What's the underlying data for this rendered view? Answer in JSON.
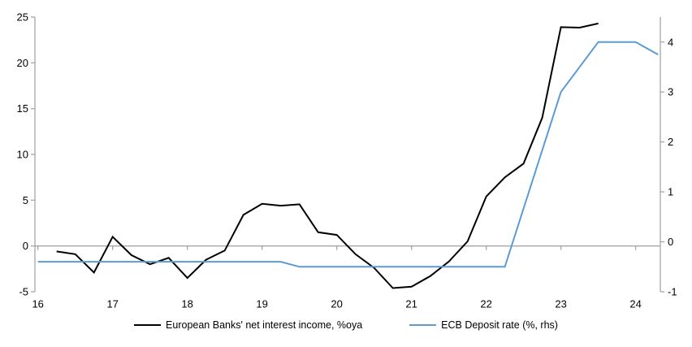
{
  "chart_data": {
    "type": "line",
    "title": "",
    "legend_position": "bottom",
    "grid": "off",
    "x_axis": {
      "min": 15.96,
      "max": 24.33,
      "ticks": [
        16,
        17,
        18,
        19,
        20,
        21,
        22,
        23,
        24
      ]
    },
    "left_axis": {
      "min": -5,
      "max": 25,
      "ticks": [
        25,
        20,
        15,
        10,
        5,
        0,
        -5
      ]
    },
    "right_axis": {
      "min": -1,
      "max": 4.5,
      "ticks": [
        4,
        3,
        2,
        1,
        0,
        -1
      ]
    },
    "series": [
      {
        "name": "European Banks' net interest income, %oya",
        "axis": "left",
        "color": "#000000",
        "points": [
          [
            16.25,
            -0.6
          ],
          [
            16.5,
            -0.9
          ],
          [
            16.75,
            -2.9
          ],
          [
            17.0,
            1.0
          ],
          [
            17.25,
            -1.0
          ],
          [
            17.5,
            -2.0
          ],
          [
            17.75,
            -1.3
          ],
          [
            18.0,
            -3.5
          ],
          [
            18.25,
            -1.5
          ],
          [
            18.5,
            -0.5
          ],
          [
            18.75,
            3.4
          ],
          [
            19.0,
            4.6
          ],
          [
            19.25,
            4.4
          ],
          [
            19.5,
            4.55
          ],
          [
            19.75,
            1.5
          ],
          [
            20.0,
            1.2
          ],
          [
            20.25,
            -0.9
          ],
          [
            20.5,
            -2.4
          ],
          [
            20.75,
            -4.6
          ],
          [
            21.0,
            -4.45
          ],
          [
            21.25,
            -3.3
          ],
          [
            21.5,
            -1.7
          ],
          [
            21.75,
            0.5
          ],
          [
            22.0,
            5.4
          ],
          [
            22.25,
            7.5
          ],
          [
            22.5,
            9.0
          ],
          [
            22.75,
            14.0
          ],
          [
            23.0,
            23.9
          ],
          [
            23.25,
            23.85
          ],
          [
            23.5,
            24.3
          ]
        ]
      },
      {
        "name": "ECB Deposit rate (%, rhs)",
        "axis": "right",
        "color": "#5B9BD5",
        "points": [
          [
            16.0,
            -0.4
          ],
          [
            19.25,
            -0.4
          ],
          [
            19.5,
            -0.5
          ],
          [
            22.25,
            -0.5
          ],
          [
            23.0,
            3.0
          ],
          [
            23.5,
            4.0
          ],
          [
            24.0,
            4.0
          ],
          [
            24.3,
            3.75
          ]
        ]
      }
    ]
  },
  "colors": {
    "axis": "#A6A6A6",
    "background": "#ffffff",
    "text": "#000000"
  }
}
